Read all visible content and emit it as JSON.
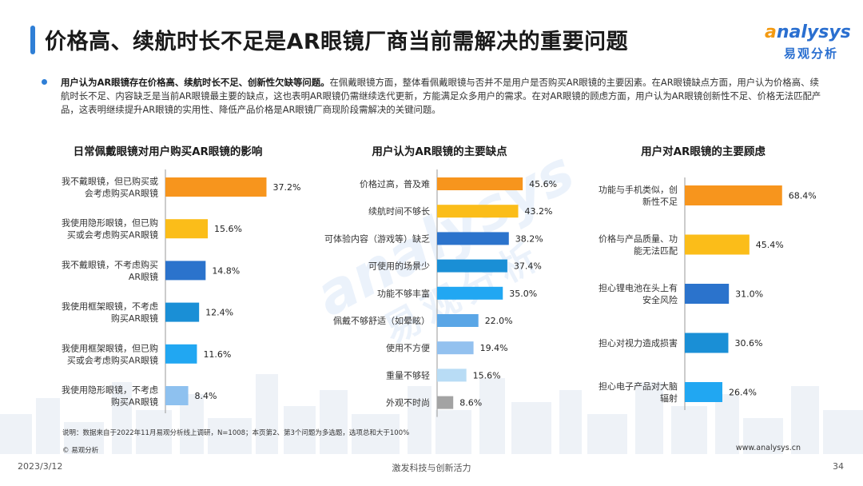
{
  "title": "价格高、续航时长不足是AR眼镜厂商当前需解决的重要问题",
  "logo": {
    "en_prefix": "a",
    "en_rest": "nalysys",
    "cn": "易观分析"
  },
  "bullet": {
    "bold": "用户认为AR眼镜存在价格高、续航时长不足、创新性欠缺等问题。",
    "text": "在佩戴眼镜方面，整体看佩戴眼镜与否并不是用户是否购买AR眼镜的主要因素。在AR眼镜缺点方面，用户认为价格高、续航时长不足、内容缺乏是当前AR眼镜最主要的缺点，这也表明AR眼镜仍需继续迭代更新，方能满足众多用户的需求。在对AR眼镜的顾虑方面，用户认为AR眼镜创新性不足、价格无法匹配产品，这表明继续提升AR眼镜的实用性、降低产品价格是AR眼镜厂商现阶段需解决的关键问题。"
  },
  "chart_data": [
    {
      "type": "bar",
      "orientation": "horizontal",
      "title": "日常佩戴眼镜对用户购买AR眼镜的影响",
      "categories": [
        [
          "我不戴眼镜，但已购买或",
          "会考虑购买AR眼镜"
        ],
        [
          "我使用隐形眼镜，但已购",
          "买或会考虑购买AR眼镜"
        ],
        [
          "我不戴眼镜，不考虑购买",
          "AR眼镜"
        ],
        [
          "我使用框架眼镜，不考虑",
          "购买AR眼镜"
        ],
        [
          "我使用框架眼镜，但已购",
          "买或会考虑购买AR眼镜"
        ],
        [
          "我使用隐形眼镜，不考虑",
          "购买AR眼镜"
        ]
      ],
      "values": [
        37.2,
        15.6,
        14.8,
        12.4,
        11.6,
        8.4
      ],
      "labels": [
        "37.2%",
        "15.6%",
        "14.8%",
        "12.4%",
        "11.6%",
        "8.4%"
      ],
      "colors": [
        "#f7951d",
        "#fbbd19",
        "#2b73cc",
        "#1a8fd6",
        "#21a7f2",
        "#8ec1ef"
      ]
    },
    {
      "type": "bar",
      "orientation": "horizontal",
      "title": "用户认为AR眼镜的主要缺点",
      "categories": [
        [
          "价格过高，普及难"
        ],
        [
          "续航时间不够长"
        ],
        [
          "可体验内容（游戏等）缺乏"
        ],
        [
          "可使用的场景少"
        ],
        [
          "功能不够丰富"
        ],
        [
          "佩戴不够舒适（如晕眩）"
        ],
        [
          "使用不方便"
        ],
        [
          "重量不够轻"
        ],
        [
          "外观不时尚"
        ]
      ],
      "values": [
        45.6,
        43.2,
        38.2,
        37.4,
        35.0,
        22.0,
        19.4,
        15.6,
        8.6
      ],
      "labels": [
        "45.6%",
        "43.2%",
        "38.2%",
        "37.4%",
        "35.0%",
        "22.0%",
        "19.4%",
        "15.6%",
        "8.6%"
      ],
      "colors": [
        "#f7951d",
        "#fbbd19",
        "#2b73cc",
        "#1a8fd6",
        "#21a7f2",
        "#5aa6e6",
        "#93c1ef",
        "#b8dcf5",
        "#a3a3a3"
      ]
    },
    {
      "type": "bar",
      "orientation": "horizontal",
      "title": "用户对AR眼镜的主要顾虑",
      "categories": [
        [
          "功能与手机类似，创",
          "新性不足"
        ],
        [
          "价格与产品质量、功",
          "能无法匹配"
        ],
        [
          "担心锂电池在头上有",
          "安全风险"
        ],
        [
          "担心对视力造成损害"
        ],
        [
          "担心电子产品对大脑",
          "辐射"
        ]
      ],
      "values": [
        68.4,
        45.4,
        31.0,
        30.6,
        26.4
      ],
      "labels": [
        "68.4%",
        "45.4%",
        "31.0%",
        "30.6%",
        "26.4%"
      ],
      "colors": [
        "#f7951d",
        "#fbbd19",
        "#2b73cc",
        "#1a8fd6",
        "#21a7f2"
      ]
    }
  ],
  "watermark": {
    "en": "analysys",
    "cn": "易观分析"
  },
  "note": "说明：数据来自于2022年11月易观分析线上调研，N=1008；本页第2、第3个问题为多选题，选项总和大于100%",
  "source": "© 易观分析",
  "website": "www.analysys.cn",
  "footer": {
    "date": "2023/3/12",
    "slogan": "激发科技与创新活力",
    "page": "34"
  }
}
